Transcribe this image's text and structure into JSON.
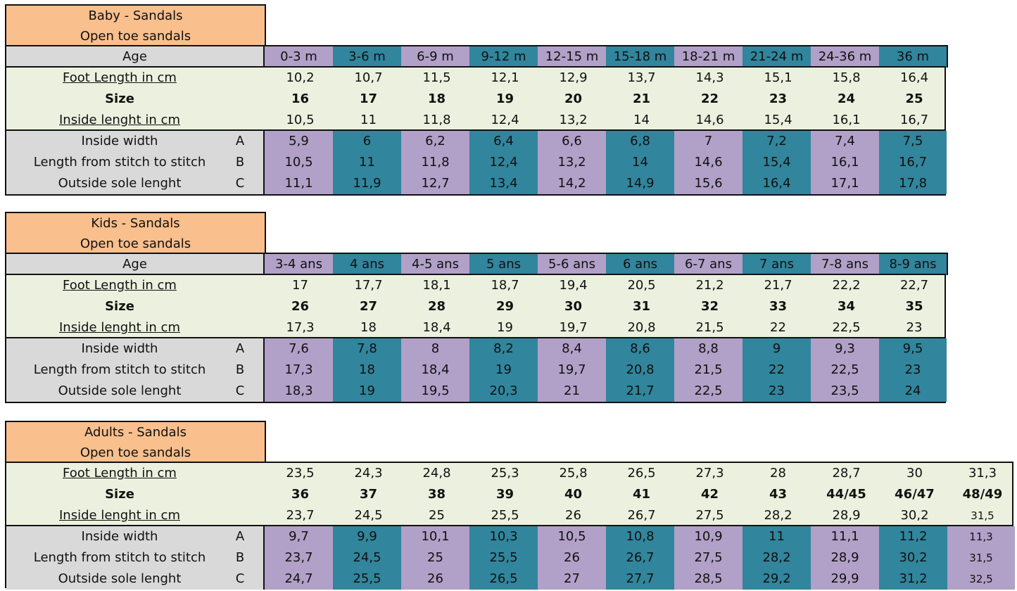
{
  "tables": [
    {
      "title_line1": "Baby - Sandals",
      "title_line2": "Open toe sandals",
      "age_label": "Age",
      "ages": [
        "0-3 m",
        "3-6 m",
        "6-9 m",
        "9-12 m",
        "12-15 m",
        "15-18 m",
        "18-21 m",
        "21-24 m",
        "24-36 m",
        "36 m"
      ],
      "foot_label": "Foot Length in cm",
      "foot": [
        "10,2",
        "10,7",
        "11,5",
        "12,1",
        "12,9",
        "13,7",
        "14,3",
        "15,1",
        "15,8",
        "16,4"
      ],
      "size_label": "Size",
      "size": [
        "16",
        "17",
        "18",
        "19",
        "20",
        "21",
        "22",
        "23",
        "24",
        "25"
      ],
      "inside_label": "Inside lenght in cm",
      "inside": [
        "10,5",
        "11",
        "11,8",
        "12,4",
        "13,2",
        "14",
        "14,6",
        "15,4",
        "16,1",
        "16,7"
      ],
      "width_label": "Inside width",
      "width_letter": "A",
      "width": [
        "5,9",
        "6",
        "6,2",
        "6,4",
        "6,6",
        "6,8",
        "7",
        "7,2",
        "7,4",
        "7,5"
      ],
      "stitch_label": "Length from stitch to stitch",
      "stitch_letter": "B",
      "stitch": [
        "10,5",
        "11",
        "11,8",
        "12,4",
        "13,2",
        "14",
        "14,6",
        "15,4",
        "16,1",
        "16,7"
      ],
      "sole_label": "Outside sole lenght",
      "sole_letter": "C",
      "sole": [
        "11,1",
        "11,9",
        "12,7",
        "13,4",
        "14,2",
        "14,9",
        "15,6",
        "16,4",
        "17,1",
        "17,8"
      ]
    },
    {
      "title_line1": "Kids - Sandals",
      "title_line2": "Open toe sandals",
      "age_label": "Age",
      "ages": [
        "3-4 ans",
        "4 ans",
        "4-5 ans",
        "5 ans",
        "5-6 ans",
        "6 ans",
        "6-7 ans",
        "7 ans",
        "7-8 ans",
        "8-9 ans"
      ],
      "foot_label": "Foot Length in cm",
      "foot": [
        "17",
        "17,7",
        "18,1",
        "18,7",
        "19,4",
        "20,5",
        "21,2",
        "21,7",
        "22,2",
        "22,7"
      ],
      "size_label": "Size",
      "size": [
        "26",
        "27",
        "28",
        "29",
        "30",
        "31",
        "32",
        "33",
        "34",
        "35"
      ],
      "inside_label": "Inside lenght in cm",
      "inside": [
        "17,3",
        "18",
        "18,4",
        "19",
        "19,7",
        "20,8",
        "21,5",
        "22",
        "22,5",
        "23"
      ],
      "width_label": "Inside width",
      "width_letter": "A",
      "width": [
        "7,6",
        "7,8",
        "8",
        "8,2",
        "8,4",
        "8,6",
        "8,8",
        "9",
        "9,3",
        "9,5"
      ],
      "stitch_label": "Length from stitch to stitch",
      "stitch_letter": "B",
      "stitch": [
        "17,3",
        "18",
        "18,4",
        "19",
        "19,7",
        "20,8",
        "21,5",
        "22",
        "22,5",
        "23"
      ],
      "sole_label": "Outside sole lenght",
      "sole_letter": "C",
      "sole": [
        "18,3",
        "19",
        "19,5",
        "20,3",
        "21",
        "21,7",
        "22,5",
        "23",
        "23,5",
        "24"
      ]
    },
    {
      "title_line1": "Adults - Sandals",
      "title_line2": "Open toe sandals",
      "foot_label": "Foot Length in cm",
      "foot": [
        "23,5",
        "24,3",
        "24,8",
        "25,3",
        "25,8",
        "26,5",
        "27,3",
        "28",
        "28,7",
        "30",
        "31,3"
      ],
      "size_label": "Size",
      "size": [
        "36",
        "37",
        "38",
        "39",
        "40",
        "41",
        "42",
        "43",
        "44/45",
        "46/47",
        "48/49"
      ],
      "inside_label": "Inside lenght in cm",
      "inside": [
        "23,7",
        "24,5",
        "25",
        "25,5",
        "26",
        "26,7",
        "27,5",
        "28,2",
        "28,9",
        "30,2",
        "31,5"
      ],
      "width_label": "Inside width",
      "width_letter": "A",
      "width": [
        "9,7",
        "9,9",
        "10,1",
        "10,3",
        "10,5",
        "10,8",
        "10,9",
        "11",
        "11,1",
        "11,2",
        "11,3"
      ],
      "stitch_label": "Length from stitch to stitch",
      "stitch_letter": "B",
      "stitch": [
        "23,7",
        "24,5",
        "25",
        "25,5",
        "26",
        "26,7",
        "27,5",
        "28,2",
        "28,9",
        "30,2",
        "31,5"
      ],
      "sole_label": "Outside sole lenght",
      "sole_letter": "C",
      "sole": [
        "24,7",
        "25,5",
        "26",
        "26,5",
        "27",
        "27,7",
        "28,5",
        "29,2",
        "29,9",
        "31,2",
        "32,5"
      ]
    }
  ]
}
